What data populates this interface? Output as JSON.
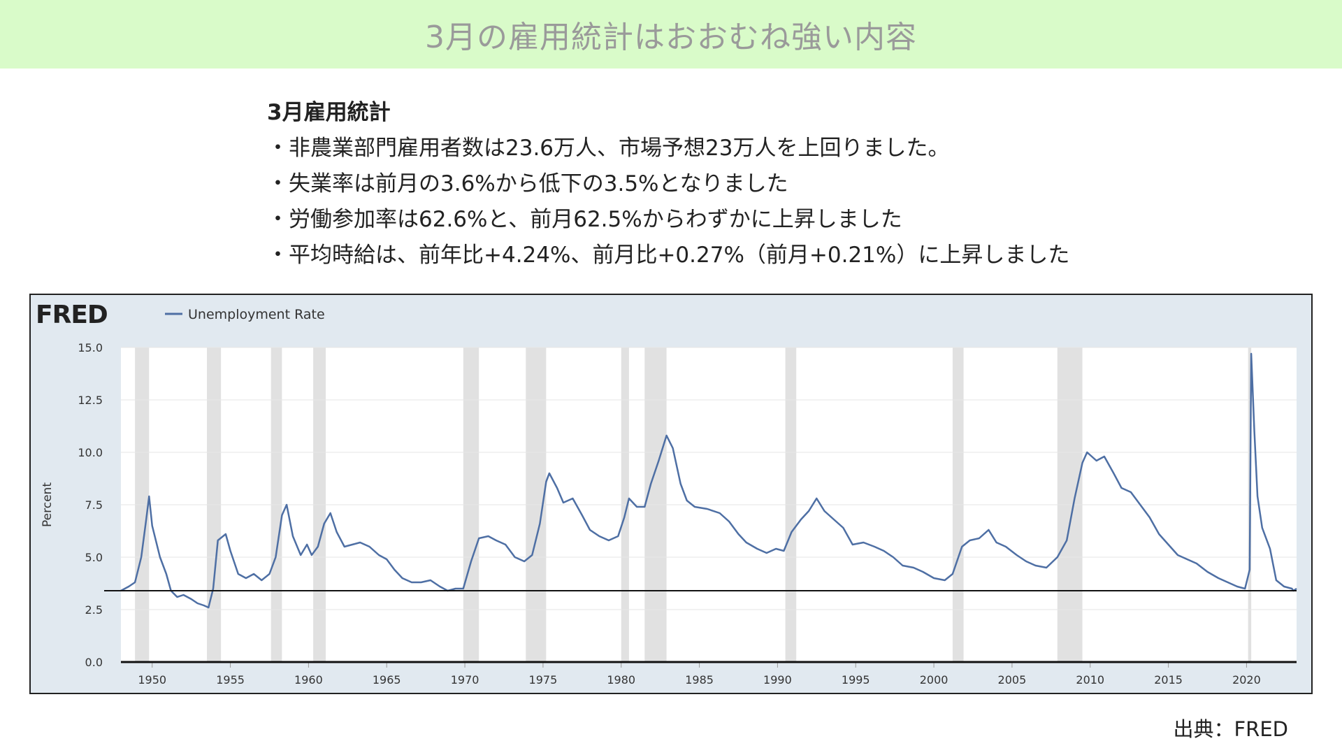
{
  "header": {
    "title": "3月の雇用統計はおおむね強い内容"
  },
  "notes": {
    "heading": "3月雇用統計",
    "items": [
      "・非農業部門雇用者数は23.6万人、市場予想23万人を上回りました。",
      "・失業率は前月の3.6%から低下の3.5%となりました",
      "・労働参加率は62.6%と、前月62.5%からわずかに上昇しました",
      "・平均時給は、前年比+4.24%、前月比+0.27%（前月+0.21%）に上昇しました"
    ]
  },
  "source": "出典：FRED",
  "chart_data": {
    "type": "line",
    "brand": "FRED",
    "ylabel": "Percent",
    "x": [
      1948.0,
      1948.5,
      1948.9,
      1949.3,
      1949.6,
      1949.8,
      1950.0,
      1950.5,
      1950.9,
      1951.2,
      1951.6,
      1952.0,
      1952.5,
      1952.9,
      1953.3,
      1953.6,
      1953.9,
      1954.2,
      1954.7,
      1955.0,
      1955.5,
      1956.0,
      1956.5,
      1957.0,
      1957.5,
      1957.9,
      1958.3,
      1958.6,
      1959.0,
      1959.5,
      1959.9,
      1960.2,
      1960.6,
      1961.0,
      1961.4,
      1961.8,
      1962.3,
      1962.8,
      1963.3,
      1963.9,
      1964.5,
      1965.0,
      1965.5,
      1966.0,
      1966.6,
      1967.2,
      1967.8,
      1968.4,
      1968.9,
      1969.4,
      1969.9,
      1970.4,
      1970.9,
      1971.5,
      1972.0,
      1972.6,
      1973.2,
      1973.8,
      1974.3,
      1974.8,
      1975.2,
      1975.4,
      1975.9,
      1976.3,
      1976.9,
      1977.5,
      1978.0,
      1978.6,
      1979.2,
      1979.8,
      1980.2,
      1980.5,
      1981.0,
      1981.5,
      1981.9,
      1982.4,
      1982.9,
      1983.3,
      1983.8,
      1984.2,
      1984.7,
      1985.5,
      1986.3,
      1986.9,
      1987.5,
      1988.0,
      1988.7,
      1989.3,
      1989.9,
      1990.4,
      1990.9,
      1991.5,
      1992.0,
      1992.5,
      1993.0,
      1993.6,
      1994.2,
      1994.8,
      1995.5,
      1996.2,
      1996.8,
      1997.4,
      1998.0,
      1998.7,
      1999.3,
      2000.0,
      2000.7,
      2001.2,
      2001.8,
      2002.3,
      2002.9,
      2003.5,
      2004.0,
      2004.6,
      2005.3,
      2005.9,
      2006.5,
      2007.2,
      2007.9,
      2008.5,
      2009.0,
      2009.5,
      2009.8,
      2010.4,
      2010.9,
      2011.5,
      2012.0,
      2012.6,
      2013.2,
      2013.8,
      2014.4,
      2015.0,
      2015.6,
      2016.2,
      2016.8,
      2017.5,
      2018.2,
      2018.8,
      2019.4,
      2019.9,
      2020.2,
      2020.3,
      2020.5,
      2020.7,
      2021.0,
      2021.5,
      2021.9,
      2022.4,
      2022.9,
      2023.0,
      2023.2
    ],
    "series": [
      {
        "name": "Unemployment Rate",
        "color": "#4e6fa4",
        "values": [
          3.4,
          3.6,
          3.8,
          5.0,
          6.7,
          7.9,
          6.5,
          5.0,
          4.2,
          3.4,
          3.1,
          3.2,
          3.0,
          2.8,
          2.7,
          2.6,
          3.5,
          5.8,
          6.1,
          5.3,
          4.2,
          4.0,
          4.2,
          3.9,
          4.2,
          5.0,
          7.0,
          7.5,
          6.0,
          5.1,
          5.6,
          5.1,
          5.5,
          6.6,
          7.1,
          6.2,
          5.5,
          5.6,
          5.7,
          5.5,
          5.1,
          4.9,
          4.4,
          4.0,
          3.8,
          3.8,
          3.9,
          3.6,
          3.4,
          3.5,
          3.5,
          4.8,
          5.9,
          6.0,
          5.8,
          5.6,
          5.0,
          4.8,
          5.1,
          6.6,
          8.6,
          9.0,
          8.3,
          7.6,
          7.8,
          7.0,
          6.3,
          6.0,
          5.8,
          6.0,
          6.9,
          7.8,
          7.4,
          7.4,
          8.5,
          9.6,
          10.8,
          10.2,
          8.5,
          7.7,
          7.4,
          7.3,
          7.1,
          6.7,
          6.1,
          5.7,
          5.4,
          5.2,
          5.4,
          5.3,
          6.2,
          6.8,
          7.2,
          7.8,
          7.2,
          6.8,
          6.4,
          5.6,
          5.7,
          5.5,
          5.3,
          5.0,
          4.6,
          4.5,
          4.3,
          4.0,
          3.9,
          4.2,
          5.5,
          5.8,
          5.9,
          6.3,
          5.7,
          5.5,
          5.1,
          4.8,
          4.6,
          4.5,
          5.0,
          5.8,
          7.8,
          9.5,
          10.0,
          9.6,
          9.8,
          9.0,
          8.3,
          8.1,
          7.5,
          6.9,
          6.1,
          5.6,
          5.1,
          4.9,
          4.7,
          4.3,
          4.0,
          3.8,
          3.6,
          3.5,
          4.4,
          14.7,
          11.0,
          7.9,
          6.4,
          5.4,
          3.9,
          3.6,
          3.5,
          3.4,
          3.5
        ]
      }
    ],
    "recessions": [
      [
        1948.9,
        1949.8
      ],
      [
        1953.5,
        1954.4
      ],
      [
        1957.6,
        1958.3
      ],
      [
        1960.3,
        1961.1
      ],
      [
        1969.9,
        1970.9
      ],
      [
        1973.9,
        1975.2
      ],
      [
        1980.0,
        1980.5
      ],
      [
        1981.5,
        1982.9
      ],
      [
        1990.5,
        1991.2
      ],
      [
        2001.2,
        2001.9
      ],
      [
        2007.9,
        2009.5
      ],
      [
        2020.1,
        2020.3
      ]
    ],
    "reference_line": 3.4,
    "xlim": [
      1948,
      2023.2
    ],
    "ylim": [
      0,
      15
    ],
    "xticks": [
      1950,
      1955,
      1960,
      1965,
      1970,
      1975,
      1980,
      1985,
      1990,
      1995,
      2000,
      2005,
      2010,
      2015,
      2020
    ],
    "yticks": [
      {
        "value": 0,
        "label": "0.0"
      },
      2.5,
      {
        "value": 5,
        "label": "5.0"
      },
      7.5,
      {
        "value": 10,
        "label": "10.0"
      },
      12.5,
      {
        "value": 15,
        "label": "15.0"
      }
    ],
    "grid": true
  }
}
